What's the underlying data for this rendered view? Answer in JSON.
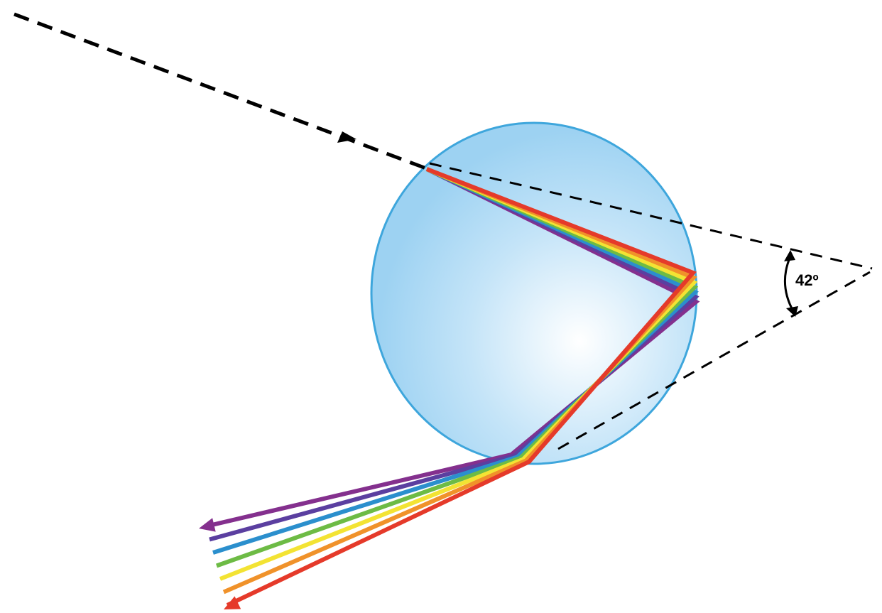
{
  "diagram": {
    "angle_label": "42º",
    "colors": {
      "droplet_fill_edge": "#9dd2f2",
      "droplet_fill_center": "#ffffff",
      "droplet_stroke": "#3ea6dc",
      "light_ray": "#000000",
      "spectrum": [
        "#e53a2a",
        "#f0922a",
        "#f3e333",
        "#6dbb45",
        "#2b8fcd",
        "#5b3fa0",
        "#84308e"
      ]
    },
    "spectrum_names": [
      "red",
      "orange",
      "yellow",
      "green",
      "blue",
      "indigo",
      "violet"
    ]
  }
}
